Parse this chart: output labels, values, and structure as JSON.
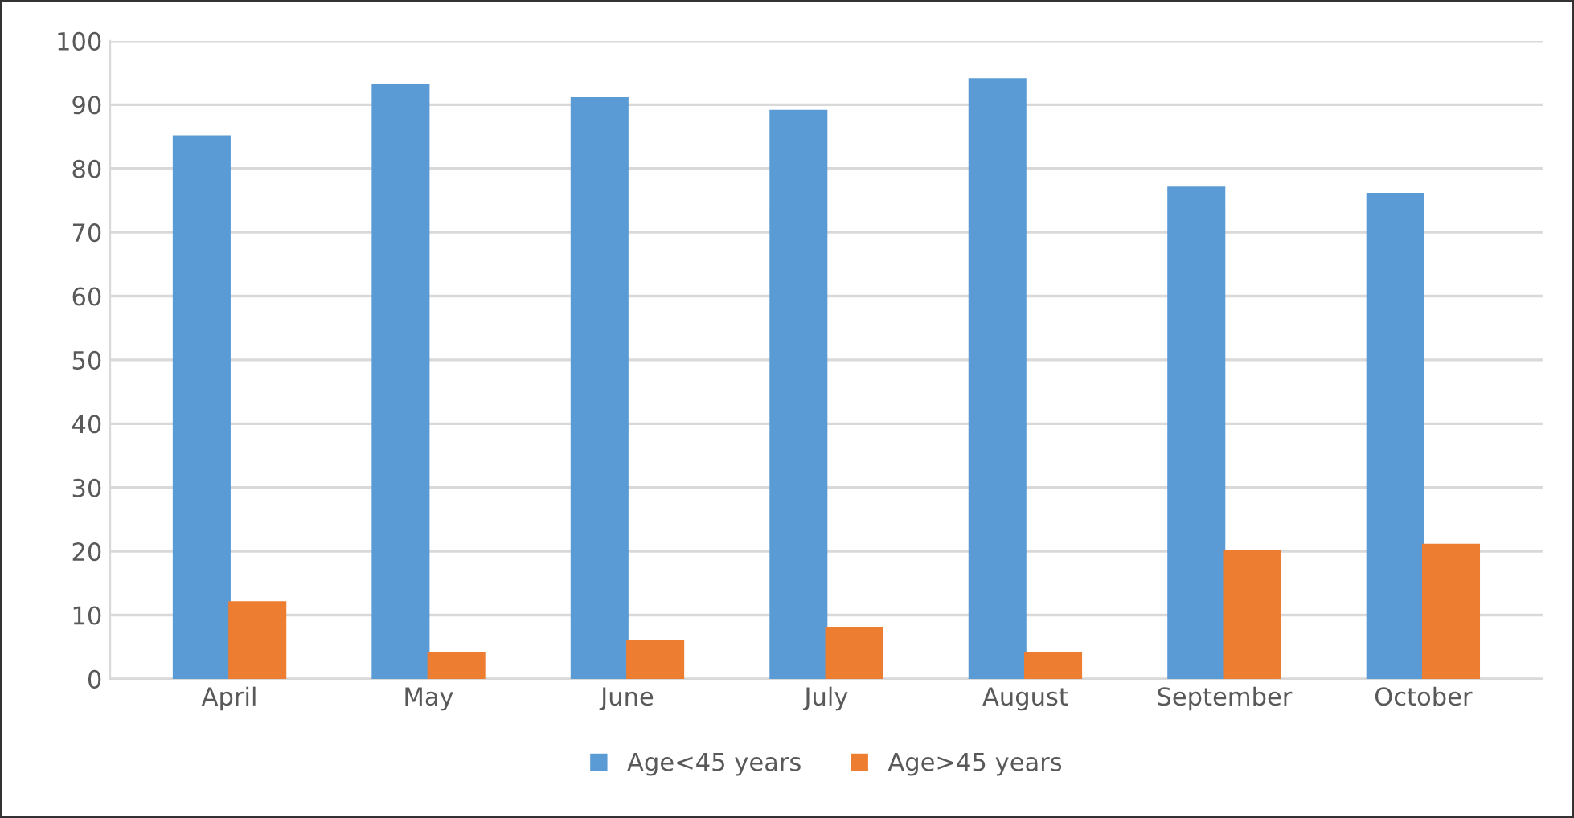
{
  "chart_data": {
    "type": "bar",
    "categories": [
      "April",
      "May",
      "June",
      "July",
      "August",
      "September",
      "October"
    ],
    "series": [
      {
        "name": "Age<45 years",
        "color": "#5b9bd5",
        "values": [
          85,
          93,
          91,
          89,
          94,
          77,
          76
        ]
      },
      {
        "name": "Age>45 years",
        "color": "#ed7d31",
        "values": [
          12,
          4,
          6,
          8,
          4,
          20,
          21
        ]
      }
    ],
    "ylim": [
      0,
      100
    ],
    "yticks": [
      0,
      10,
      20,
      30,
      40,
      50,
      60,
      70,
      80,
      90,
      100
    ],
    "grid": "y",
    "legend": "bottom"
  }
}
